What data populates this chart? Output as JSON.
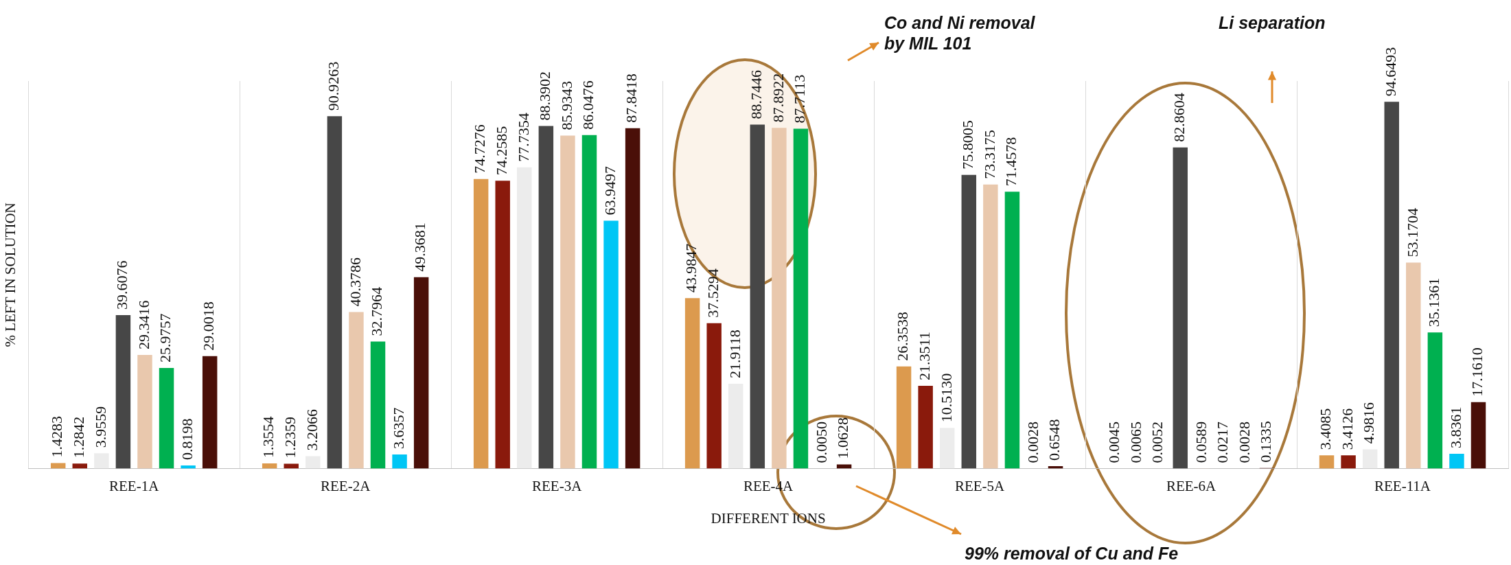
{
  "chart_data": {
    "type": "bar",
    "xlabel": "DIFFERENT IONS",
    "ylabel": "% LEFT IN SOLUTION",
    "categories": [
      "REE-1A",
      "REE-2A",
      "REE-3A",
      "REE-4A",
      "REE-5A",
      "REE-6A",
      "REE-11A"
    ],
    "series": [
      {
        "color": "#dc9a4e",
        "values": [
          1.4283,
          1.3554,
          74.7276,
          43.9847,
          26.3538,
          0.0045,
          3.4085
        ],
        "value_labels": [
          "1.4283",
          "1.3554",
          "74.7276",
          "43.9847",
          "26.3538",
          "0.0045",
          "3.4085"
        ]
      },
      {
        "color": "#8a1a0c",
        "values": [
          1.2842,
          1.2359,
          74.2585,
          37.5294,
          21.3511,
          0.0065,
          3.4126
        ],
        "value_labels": [
          "1.2842",
          "1.2359",
          "74.2585",
          "37.5294",
          "21.3511",
          "0.0065",
          "3.4126"
        ]
      },
      {
        "color": "#ececec",
        "values": [
          3.9559,
          3.2066,
          77.7354,
          21.9118,
          10.513,
          0.0052,
          4.9816
        ],
        "value_labels": [
          "3.9559",
          "3.2066",
          "77.7354",
          "21.9118",
          "10.5130",
          "0.0052",
          "4.9816"
        ]
      },
      {
        "color": "#474747",
        "values": [
          39.6076,
          90.9263,
          88.3902,
          88.7446,
          75.8005,
          82.8604,
          94.6493
        ],
        "value_labels": [
          "39.6076",
          "90.9263",
          "88.3902",
          "88.7446",
          "75.8005",
          "82.8604",
          "94.6493"
        ]
      },
      {
        "color": "#e9c8ad",
        "values": [
          29.3416,
          40.3786,
          85.9343,
          87.8922,
          73.3175,
          0.0589,
          53.1704
        ],
        "value_labels": [
          "29.3416",
          "40.3786",
          "85.9343",
          "87.8922",
          "73.3175",
          "0.0589",
          "53.1704"
        ]
      },
      {
        "color": "#00b050",
        "values": [
          25.9757,
          32.7964,
          86.0476,
          87.7113,
          71.4578,
          0.0217,
          35.1361
        ],
        "value_labels": [
          "25.9757",
          "32.7964",
          "86.0476",
          "87.7113",
          "71.4578",
          "0.0217",
          "35.1361"
        ]
      },
      {
        "color": "#00c6f5",
        "values": [
          0.8198,
          3.6357,
          63.9497,
          0.005,
          0.0028,
          0.0028,
          3.8361
        ],
        "value_labels": [
          "0.8198",
          "3.6357",
          "63.9497",
          "0.0050",
          "0.0028",
          "0.0028",
          "3.8361"
        ]
      },
      {
        "color": "#4a0f08",
        "values": [
          29.0018,
          49.3681,
          87.8418,
          1.0628,
          0.6548,
          0.1335,
          17.161
        ],
        "value_labels": [
          "29.0018",
          "49.3681",
          "87.8418",
          "1.0628",
          "0.6548",
          "0.1335",
          "17.1610"
        ]
      }
    ],
    "annotations": [
      "Co and Ni removal by MIL 101",
      "99% removal of Cu and Fe",
      "Li separation"
    ],
    "grid": "x",
    "legend": false
  }
}
